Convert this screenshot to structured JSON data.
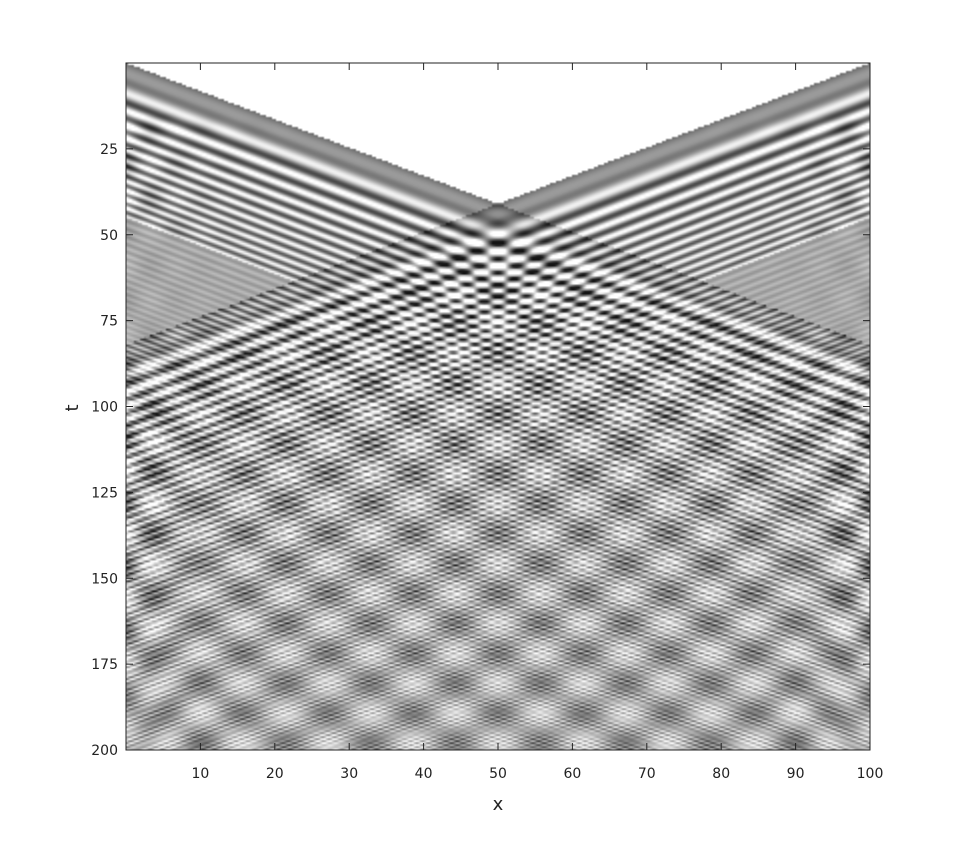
{
  "chart_data": {
    "type": "heatmap",
    "title": "",
    "xlabel": "x",
    "ylabel": "t",
    "xlim": [
      0,
      100
    ],
    "ylim": [
      0,
      200
    ],
    "y_axis_direction": "downward",
    "x_ticks": [
      10,
      20,
      30,
      40,
      50,
      60,
      70,
      80,
      90,
      100
    ],
    "y_ticks": [
      25,
      50,
      75,
      100,
      125,
      150,
      175,
      200
    ],
    "colormap": "grayscale",
    "features": {
      "source_points_x": [
        0,
        100
      ],
      "front_slope_t_per_x": 0.82,
      "front_collision": {
        "x": 50,
        "t": 41
      },
      "quiescent_value_color": "#a8a8a8"
    },
    "grid": false,
    "legend": "none"
  },
  "colors": {
    "background": "#ffffff",
    "axis": "#222222",
    "quiescent": "#a8a8a8"
  }
}
